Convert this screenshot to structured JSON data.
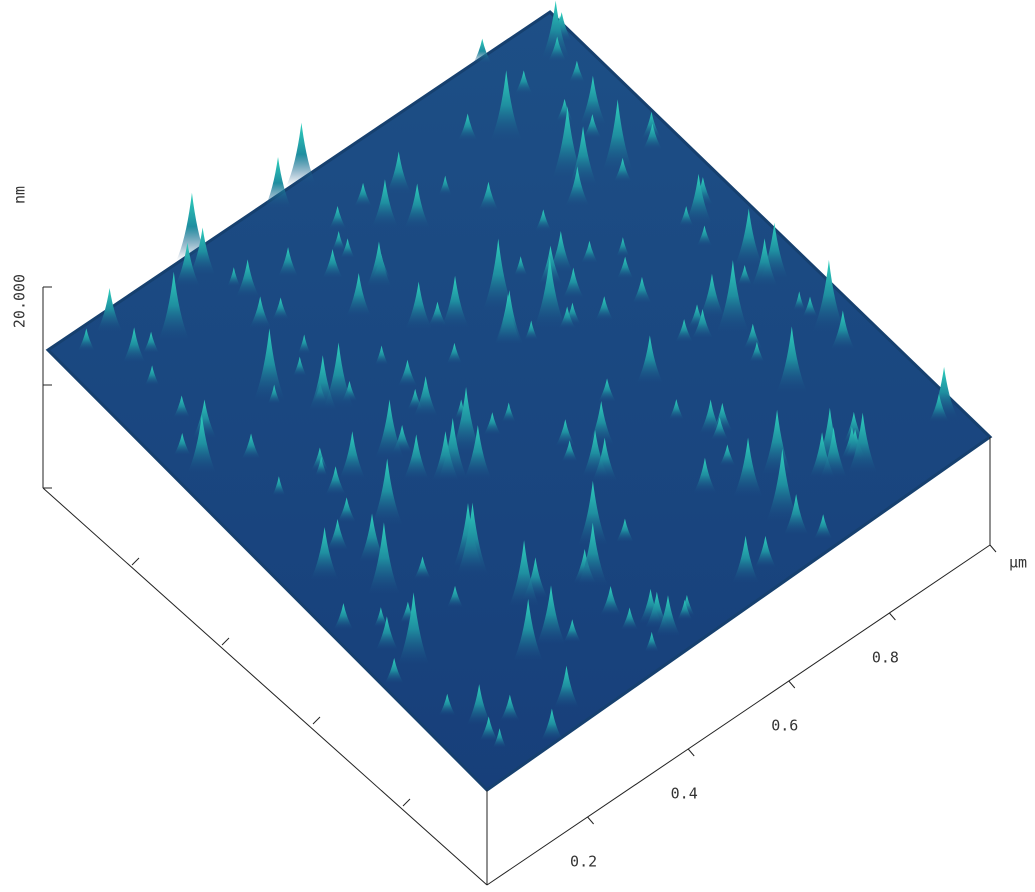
{
  "chart_data": {
    "type": "surface",
    "zlabel": "nm",
    "zlim": [
      0,
      20
    ],
    "zticks": [
      {
        "value": 20,
        "label": "20.000"
      }
    ],
    "xlabel": "µm",
    "xlim": [
      0,
      1
    ],
    "xticks": [
      0.2,
      0.4,
      0.6,
      0.8
    ]
  }
}
